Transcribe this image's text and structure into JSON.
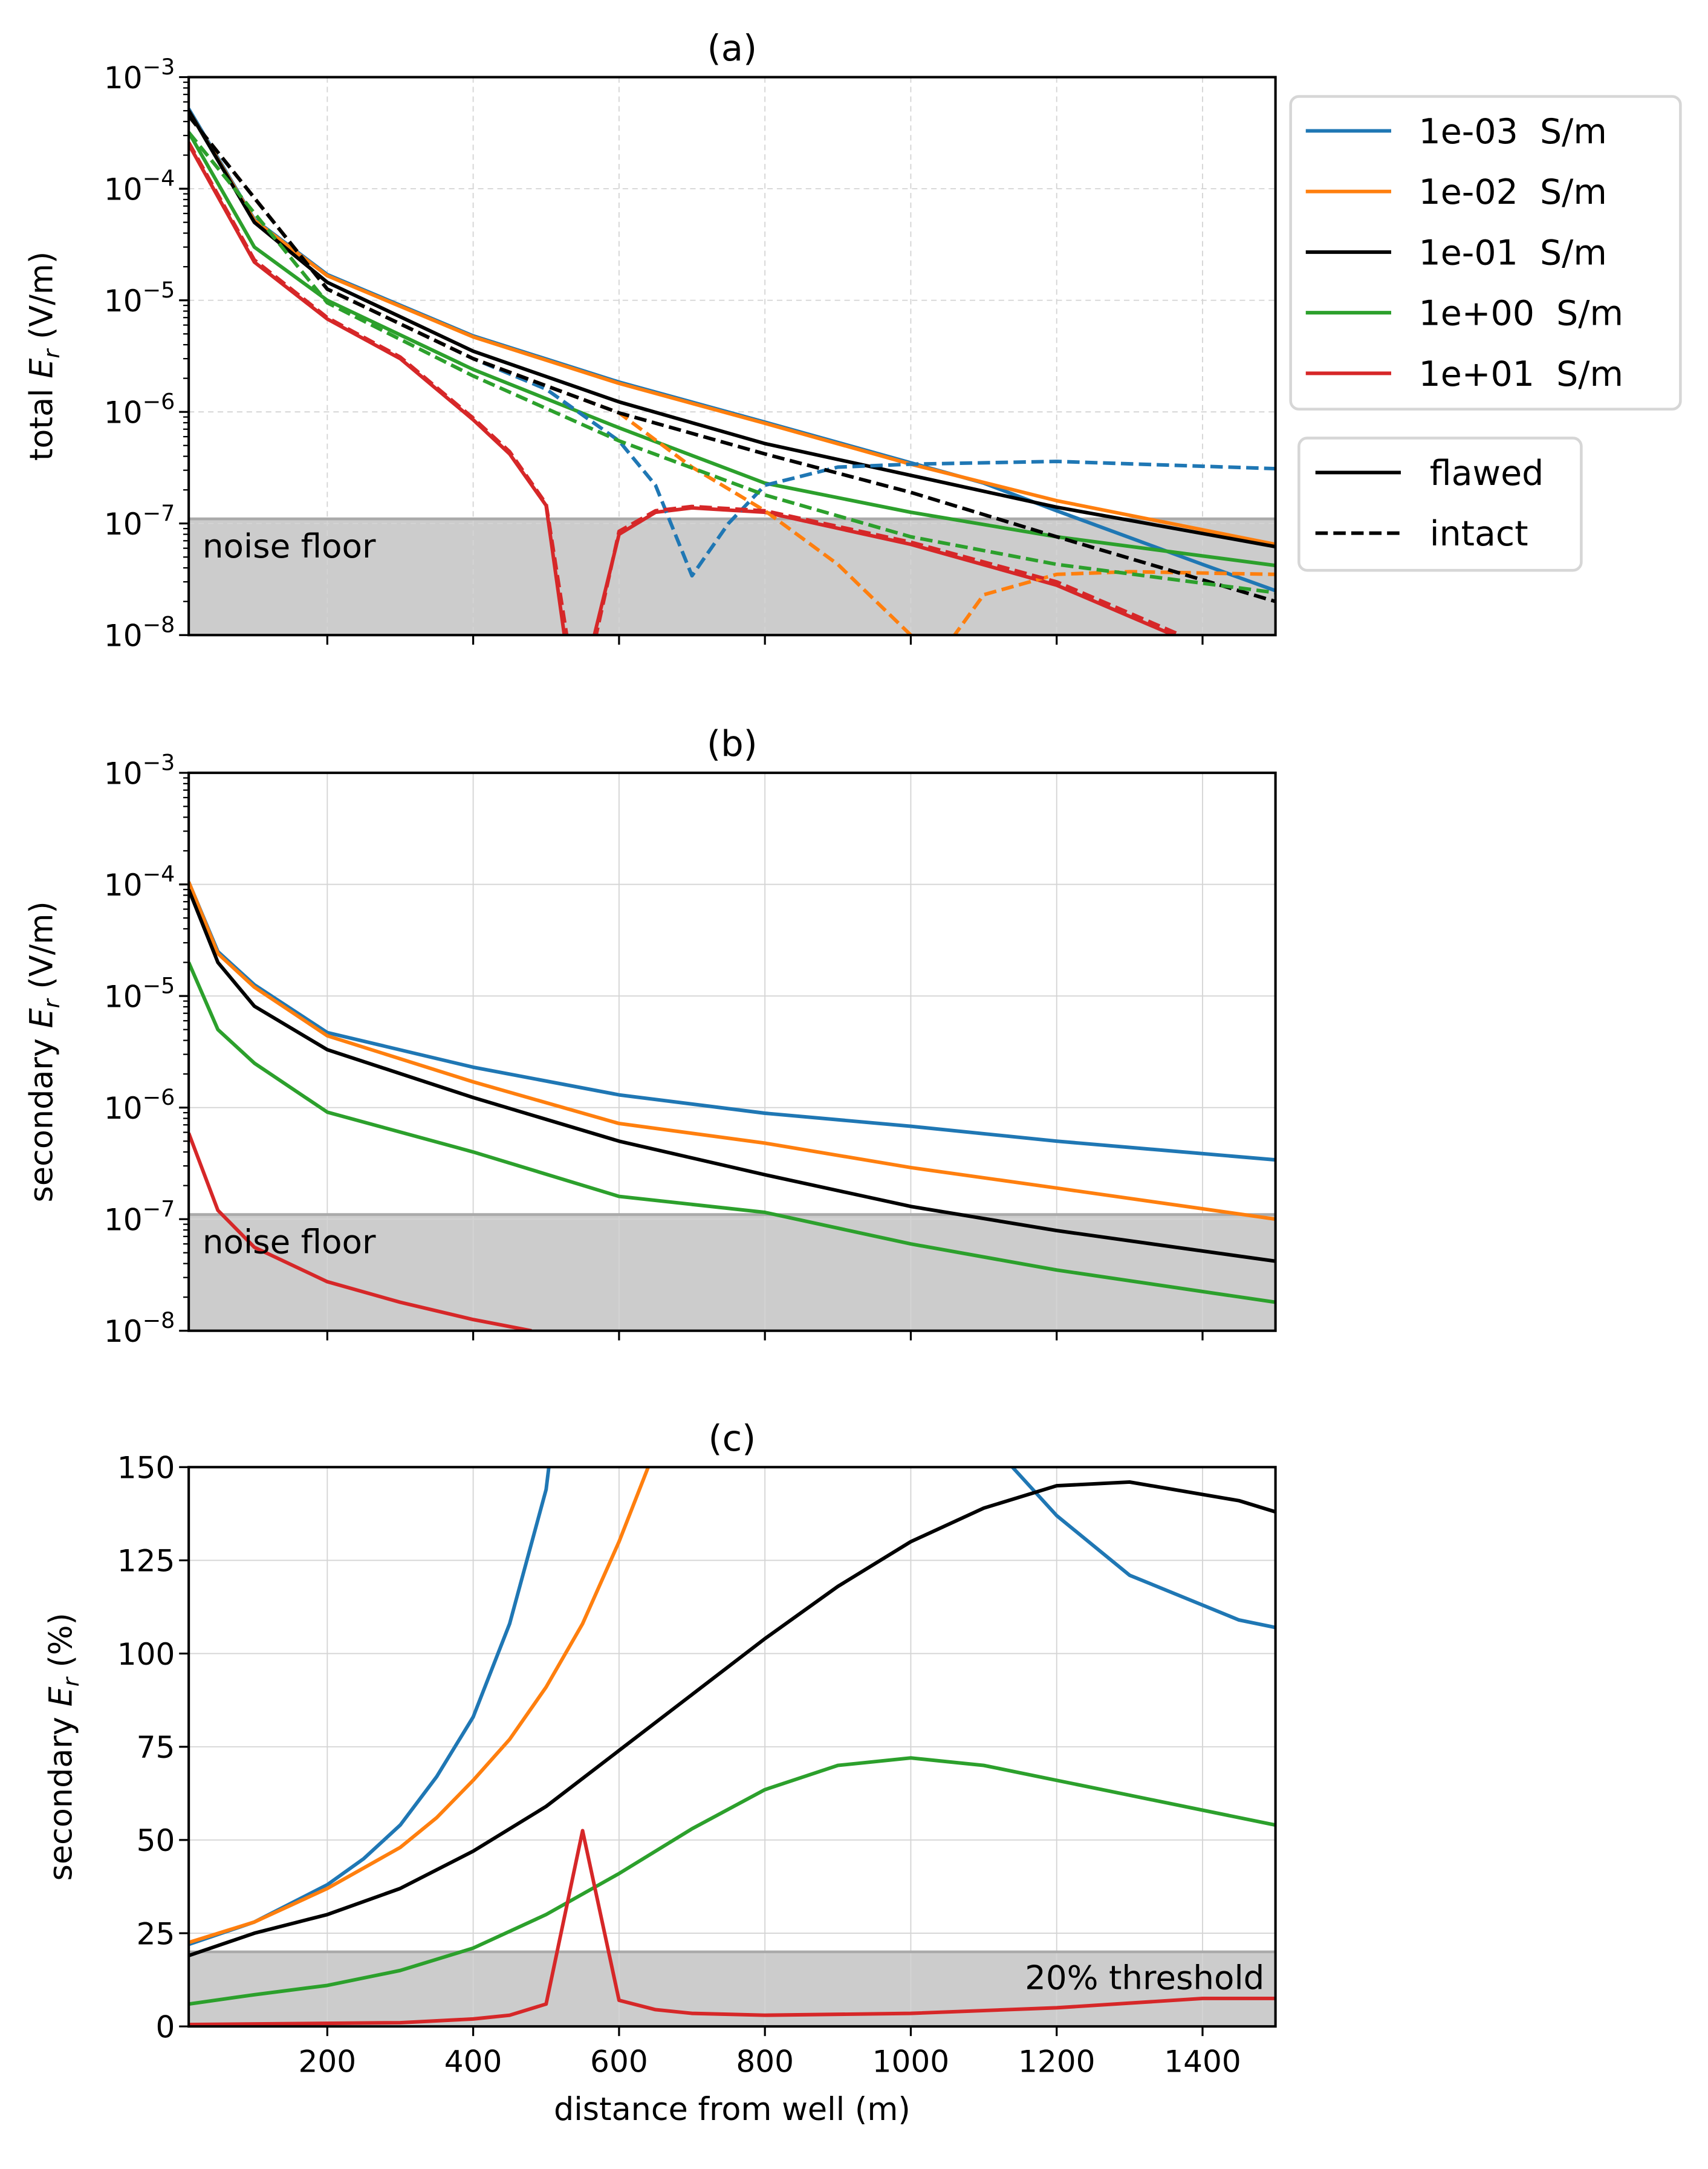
{
  "colors": {
    "c1e-03": "#1f77b4",
    "c1e-02": "#ff7f0e",
    "c1e-01": "#000000",
    "c1e+00": "#2ca02c",
    "c1e+01": "#d62728",
    "shade": "#cccccc",
    "shade_edge": "#aaaaaa",
    "grid": "#d4d4d4"
  },
  "legend": {
    "conductivity": [
      {
        "label": "1e-03  S/m",
        "color": "#1f77b4"
      },
      {
        "label": "1e-02  S/m",
        "color": "#ff7f0e"
      },
      {
        "label": "1e-01  S/m",
        "color": "#000000"
      },
      {
        "label": "1e+00  S/m",
        "color": "#2ca02c"
      },
      {
        "label": "1e+01  S/m",
        "color": "#d62728"
      }
    ],
    "model": [
      {
        "label": "flawed",
        "style": "solid"
      },
      {
        "label": "intact",
        "style": "dashed"
      }
    ],
    "placement": "outside-right of panel (a)"
  },
  "chart_data": [
    {
      "panel": "a",
      "type": "line",
      "title": "(a)",
      "ylabel": "total E_r (V/m)",
      "xlabel": "",
      "xlim": [
        10,
        1500
      ],
      "xticks": [
        200,
        400,
        600,
        800,
        1000,
        1200,
        1400
      ],
      "xtick_labels_shown": false,
      "yscale": "log",
      "ylim": [
        1e-08,
        0.001
      ],
      "yticks": [
        1e-08,
        1e-07,
        1e-06,
        1e-05,
        0.0001,
        0.001
      ],
      "ytick_labels": [
        "10^-8",
        "10^-7",
        "10^-6",
        "10^-5",
        "10^-4",
        "10^-3"
      ],
      "grid": "dashed",
      "shaded_region": {
        "label": "noise floor",
        "ymax": 1.1e-07
      },
      "series": [
        {
          "name": "1e-03  S/m",
          "case": "flawed",
          "color": "#1f77b4",
          "x": [
            10,
            100,
            200,
            400,
            600,
            800,
            1000,
            1100,
            1200,
            1400,
            1500
          ],
          "y": [
            0.00052,
            5.3e-05,
            1.7e-05,
            4.8e-06,
            1.85e-06,
            8.1e-07,
            3.5e-07,
            2.3e-07,
            1.3e-07,
            4.3e-08,
            2.5e-08
          ]
        },
        {
          "name": "1e-02  S/m",
          "case": "flawed",
          "color": "#ff7f0e",
          "x": [
            10,
            100,
            200,
            400,
            600,
            800,
            1000,
            1200,
            1500
          ],
          "y": [
            0.0005,
            5.2e-05,
            1.66e-05,
            4.7e-06,
            1.8e-06,
            7.9e-07,
            3.4e-07,
            1.6e-07,
            6.5e-08
          ]
        },
        {
          "name": "1e-01  S/m",
          "case": "flawed",
          "color": "#000000",
          "x": [
            10,
            100,
            200,
            400,
            600,
            800,
            1000,
            1200,
            1500
          ],
          "y": [
            0.0005,
            5e-05,
            1.45e-05,
            3.5e-06,
            1.23e-06,
            5.2e-07,
            2.7e-07,
            1.4e-07,
            6.2e-08
          ]
        },
        {
          "name": "1e+00  S/m",
          "case": "flawed",
          "color": "#2ca02c",
          "x": [
            10,
            100,
            200,
            400,
            600,
            800,
            1000,
            1200,
            1500
          ],
          "y": [
            0.00032,
            3e-05,
            1e-05,
            2.4e-06,
            7.2e-07,
            2.3e-07,
            1.26e-07,
            7.6e-08,
            4.2e-08
          ]
        },
        {
          "name": "1e+01  S/m",
          "case": "flawed",
          "color": "#d62728",
          "x": [
            10,
            100,
            200,
            300,
            400,
            450,
            500,
            540,
            600,
            650,
            700,
            800,
            1000,
            1200,
            1360
          ],
          "y": [
            0.00025,
            2.2e-05,
            6.8e-06,
            3e-06,
            8.5e-07,
            4.2e-07,
            1.45e-07,
            2e-09,
            8e-08,
            1.26e-07,
            1.38e-07,
            1.26e-07,
            6.5e-08,
            2.8e-08,
            1e-08
          ]
        },
        {
          "name": "1e-03  S/m",
          "case": "intact",
          "color": "#1f77b4",
          "x": [
            10,
            200,
            400,
            500,
            600,
            650,
            700,
            750,
            800,
            900,
            1000,
            1200,
            1500
          ],
          "y": [
            0.00045,
            1.26e-05,
            3e-06,
            1.6e-06,
            5.5e-07,
            2.2e-07,
            3.4e-08,
            1e-07,
            2.2e-07,
            3.2e-07,
            3.4e-07,
            3.6e-07,
            3.1e-07
          ]
        },
        {
          "name": "1e-02  S/m",
          "case": "intact",
          "color": "#ff7f0e",
          "x": [
            10,
            200,
            400,
            600,
            700,
            800,
            900,
            1000,
            1030,
            1060,
            1100,
            1200,
            1300,
            1500
          ],
          "y": [
            0.00045,
            1.26e-05,
            3e-06,
            9.8e-07,
            3.2e-07,
            1.3e-07,
            4.3e-08,
            1e-08,
            4e-09,
            1e-08,
            2.3e-08,
            3.5e-08,
            3.7e-08,
            3.5e-08
          ]
        },
        {
          "name": "1e-01  S/m",
          "case": "intact",
          "color": "#000000",
          "x": [
            10,
            200,
            400,
            600,
            800,
            1000,
            1200,
            1500
          ],
          "y": [
            0.00045,
            1.26e-05,
            3e-06,
            9.8e-07,
            4.2e-07,
            1.9e-07,
            7.6e-08,
            2e-08
          ]
        },
        {
          "name": "1e+00  S/m",
          "case": "intact",
          "color": "#2ca02c",
          "x": [
            10,
            200,
            400,
            600,
            800,
            1000,
            1200,
            1500
          ],
          "y": [
            0.00032,
            9.5e-06,
            2.1e-06,
            5.5e-07,
            1.8e-07,
            7.6e-08,
            4.3e-08,
            2.4e-08
          ]
        },
        {
          "name": "1e+01  S/m",
          "case": "intact",
          "color": "#d62728",
          "x": [
            10,
            100,
            200,
            300,
            400,
            450,
            500,
            545,
            600,
            650,
            700,
            800,
            1000,
            1200,
            1370
          ],
          "y": [
            0.00026,
            2.3e-05,
            7e-06,
            3.1e-06,
            8.8e-07,
            4.4e-07,
            1.5e-07,
            2e-09,
            8.5e-08,
            1.3e-07,
            1.42e-07,
            1.3e-07,
            6.8e-08,
            3e-08,
            1e-08
          ]
        }
      ]
    },
    {
      "panel": "b",
      "type": "line",
      "title": "(b)",
      "ylabel": "secondary E_r (V/m)",
      "xlabel": "",
      "xlim": [
        10,
        1500
      ],
      "xticks": [
        200,
        400,
        600,
        800,
        1000,
        1200,
        1400
      ],
      "xtick_labels_shown": false,
      "yscale": "log",
      "ylim": [
        1e-08,
        0.001
      ],
      "yticks": [
        1e-08,
        1e-07,
        1e-06,
        1e-05,
        0.0001,
        0.001
      ],
      "ytick_labels": [
        "10^-8",
        "10^-7",
        "10^-6",
        "10^-5",
        "10^-4",
        "10^-3"
      ],
      "grid": "solid",
      "shaded_region": {
        "label": "noise floor",
        "ymax": 1.1e-07
      },
      "series": [
        {
          "name": "1e-03  S/m",
          "color": "#1f77b4",
          "x": [
            10,
            50,
            100,
            200,
            400,
            600,
            800,
            1000,
            1200,
            1500
          ],
          "y": [
            0.000105,
            2.5e-05,
            1.26e-05,
            4.7e-06,
            2.3e-06,
            1.3e-06,
            8.9e-07,
            6.8e-07,
            5e-07,
            3.4e-07
          ]
        },
        {
          "name": "1e-02  S/m",
          "color": "#ff7f0e",
          "x": [
            10,
            50,
            100,
            200,
            400,
            600,
            800,
            1000,
            1200,
            1500
          ],
          "y": [
            0.000105,
            2.4e-05,
            1.2e-05,
            4.4e-06,
            1.7e-06,
            7.2e-07,
            4.8e-07,
            2.9e-07,
            1.9e-07,
            1e-07
          ]
        },
        {
          "name": "1e-01  S/m",
          "color": "#000000",
          "x": [
            10,
            50,
            100,
            200,
            400,
            600,
            800,
            1000,
            1200,
            1500
          ],
          "y": [
            9e-05,
            2e-05,
            8.1e-06,
            3.3e-06,
            1.23e-06,
            5e-07,
            2.5e-07,
            1.3e-07,
            7.9e-08,
            4.2e-08
          ]
        },
        {
          "name": "1e+00  S/m",
          "color": "#2ca02c",
          "x": [
            10,
            50,
            100,
            200,
            400,
            600,
            800,
            1000,
            1200,
            1500
          ],
          "y": [
            2e-05,
            5e-06,
            2.5e-06,
            9.1e-07,
            4e-07,
            1.6e-07,
            1.15e-07,
            6e-08,
            3.5e-08,
            1.8e-08
          ]
        },
        {
          "name": "1e+01  S/m",
          "color": "#d62728",
          "x": [
            10,
            50,
            100,
            200,
            300,
            400,
            480
          ],
          "y": [
            5.9e-07,
            1.2e-07,
            5.6e-08,
            2.75e-08,
            1.8e-08,
            1.26e-08,
            1e-08
          ]
        }
      ]
    },
    {
      "panel": "c",
      "type": "line",
      "title": "(c)",
      "ylabel": "secondary E_r (%)",
      "xlabel": "distance from well (m)",
      "xlim": [
        10,
        1500
      ],
      "xticks": [
        200,
        400,
        600,
        800,
        1000,
        1200,
        1400
      ],
      "xtick_labels": [
        "200",
        "400",
        "600",
        "800",
        "1000",
        "1200",
        "1400"
      ],
      "xtick_labels_shown": true,
      "yscale": "linear",
      "ylim": [
        0,
        150
      ],
      "yticks": [
        0,
        25,
        50,
        75,
        100,
        125,
        150
      ],
      "ytick_labels": [
        "0",
        "25",
        "50",
        "75",
        "100",
        "125",
        "150"
      ],
      "grid": "solid",
      "shaded_region": {
        "label": "20% threshold",
        "ymax": 20
      },
      "series": [
        {
          "name": "1e-03  S/m",
          "color": "#1f77b4",
          "x": [
            10,
            100,
            200,
            250,
            300,
            350,
            400,
            450,
            500,
            510,
            1130,
            1200,
            1300,
            1450,
            1500
          ],
          "y": [
            22,
            28,
            38,
            45,
            54,
            67,
            83,
            108,
            144,
            160,
            152,
            137,
            121,
            109,
            107
          ]
        },
        {
          "name": "1e-02  S/m",
          "color": "#ff7f0e",
          "x": [
            10,
            100,
            200,
            300,
            350,
            400,
            450,
            500,
            550,
            600,
            660
          ],
          "y": [
            22.5,
            28,
            37,
            48,
            56,
            66,
            77,
            91,
            108,
            130,
            160
          ]
        },
        {
          "name": "1e-01  S/m",
          "color": "#000000",
          "x": [
            10,
            100,
            200,
            300,
            400,
            500,
            600,
            700,
            800,
            900,
            1000,
            1100,
            1200,
            1300,
            1450,
            1500
          ],
          "y": [
            19,
            25,
            30,
            37,
            47,
            59,
            74,
            89,
            104,
            118,
            130,
            139,
            145,
            146,
            141,
            138
          ]
        },
        {
          "name": "1e+00  S/m",
          "color": "#2ca02c",
          "x": [
            10,
            100,
            200,
            300,
            400,
            500,
            600,
            700,
            800,
            900,
            1000,
            1100,
            1200,
            1300,
            1400,
            1500
          ],
          "y": [
            6,
            8.5,
            11,
            15,
            21,
            30,
            41,
            53,
            63.5,
            70,
            72,
            70,
            66,
            62,
            58,
            54
          ]
        },
        {
          "name": "1e+01  S/m",
          "color": "#d62728",
          "x": [
            10,
            300,
            400,
            450,
            500,
            550,
            600,
            650,
            700,
            800,
            1000,
            1200,
            1400,
            1500
          ],
          "y": [
            0.5,
            1,
            2,
            3,
            6,
            52.5,
            7,
            4.5,
            3.5,
            3,
            3.5,
            5,
            7.5,
            7.5
          ]
        }
      ]
    }
  ]
}
